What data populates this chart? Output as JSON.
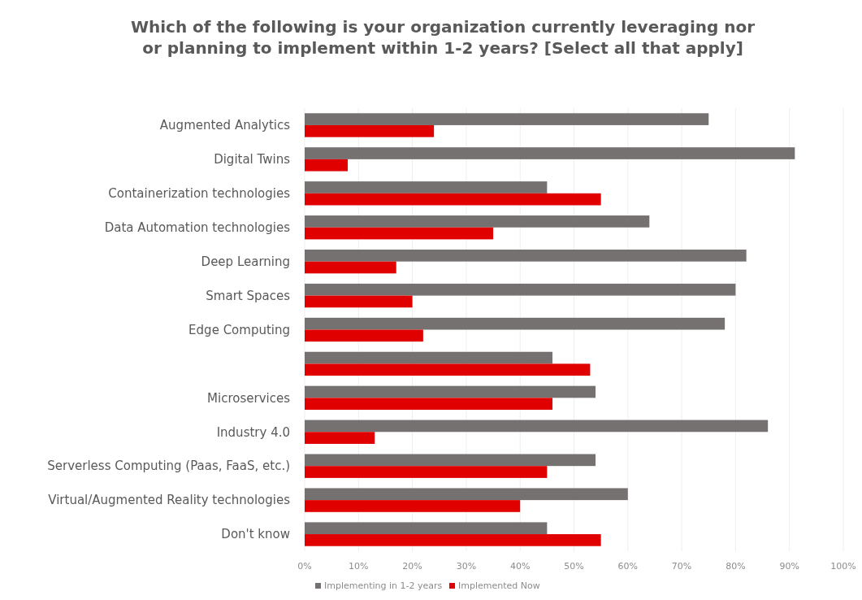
{
  "chart_data": {
    "type": "bar",
    "orientation": "horizontal",
    "title": "Which of the following is your organization currently leveraging nor or planning to implement within 1-2 years? [Select all that apply]",
    "categories": [
      "Augmented Analytics",
      "Digital Twins",
      "Containerization technologies",
      "Data Automation technologies",
      "Deep Learning",
      "Smart Spaces",
      "Edge Computing",
      null,
      "Microservices",
      "Industry 4.0",
      "Serverless Computing (Paas, FaaS, etc.)",
      "Virtual/Augmented Reality technologies",
      "Don't know"
    ],
    "series": [
      {
        "name": "Implementing in 1-2 years",
        "color": "#767171",
        "values": [
          75,
          91,
          45,
          64,
          82,
          80,
          78,
          46,
          54,
          86,
          54,
          60,
          45
        ]
      },
      {
        "name": "Implemented Now",
        "color": "#e00000",
        "values": [
          24,
          8,
          55,
          35,
          17,
          20,
          22,
          53,
          46,
          13,
          45,
          40,
          55
        ]
      }
    ],
    "xlim": [
      0,
      100
    ],
    "xticks": [
      {
        "value": 0,
        "label": "0%"
      },
      {
        "value": 10,
        "label": "10%"
      },
      {
        "value": 20,
        "label": "20%"
      },
      {
        "value": 30,
        "label": "30%"
      },
      {
        "value": 40,
        "label": "40%"
      },
      {
        "value": 50,
        "label": "50%"
      },
      {
        "value": 60,
        "label": "60%"
      },
      {
        "value": 70,
        "label": "70%"
      },
      {
        "value": 80,
        "label": "80%"
      },
      {
        "value": 90,
        "label": "90%"
      },
      {
        "value": 100,
        "label": "100%"
      }
    ],
    "grid": "x",
    "legend": "bottom"
  }
}
